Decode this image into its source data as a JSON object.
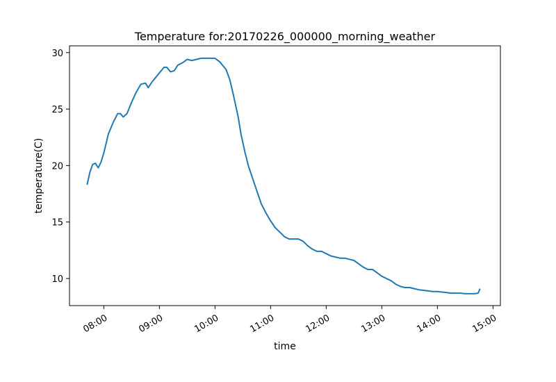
{
  "chart_data": {
    "type": "line",
    "title": "Temperature for:20170226_000000_morning_weather",
    "xlabel": "time",
    "ylabel": "temperature(C)",
    "xlim": [
      "07:23",
      "15:08"
    ],
    "ylim": [
      7.6,
      30.6
    ],
    "x_ticks": [
      "08:00",
      "09:00",
      "10:00",
      "11:00",
      "12:00",
      "13:00",
      "14:00",
      "15:00"
    ],
    "y_ticks": [
      10,
      15,
      20,
      25,
      30
    ],
    "grid": false,
    "series": [
      {
        "color": "#1f77b4",
        "x": [
          "07:42",
          "07:45",
          "07:48",
          "07:51",
          "07:54",
          "07:57",
          "08:00",
          "08:05",
          "08:10",
          "08:15",
          "08:18",
          "08:21",
          "08:25",
          "08:30",
          "08:35",
          "08:40",
          "08:45",
          "08:48",
          "08:52",
          "08:55",
          "09:00",
          "09:05",
          "09:08",
          "09:12",
          "09:16",
          "09:20",
          "09:25",
          "09:30",
          "09:35",
          "09:40",
          "09:45",
          "09:50",
          "09:55",
          "10:00",
          "10:05",
          "10:08",
          "10:12",
          "10:16",
          "10:20",
          "10:25",
          "10:28",
          "10:32",
          "10:36",
          "10:40",
          "10:45",
          "10:50",
          "10:55",
          "11:00",
          "11:05",
          "11:10",
          "11:15",
          "11:20",
          "11:25",
          "11:30",
          "11:35",
          "11:40",
          "11:45",
          "11:50",
          "11:55",
          "12:00",
          "12:05",
          "12:10",
          "12:15",
          "12:20",
          "12:25",
          "12:30",
          "12:35",
          "12:40",
          "12:45",
          "12:50",
          "12:55",
          "13:00",
          "13:05",
          "13:10",
          "13:15",
          "13:20",
          "13:25",
          "13:30",
          "13:35",
          "13:40",
          "13:45",
          "13:50",
          "13:55",
          "14:00",
          "14:05",
          "14:10",
          "14:15",
          "14:20",
          "14:25",
          "14:30",
          "14:35",
          "14:40",
          "14:44",
          "14:46"
        ],
        "values": [
          18.3,
          19.4,
          20.1,
          20.2,
          19.8,
          20.3,
          21.1,
          22.8,
          23.8,
          24.6,
          24.6,
          24.3,
          24.6,
          25.6,
          26.5,
          27.2,
          27.3,
          26.9,
          27.4,
          27.7,
          28.2,
          28.7,
          28.7,
          28.3,
          28.4,
          28.9,
          29.1,
          29.4,
          29.3,
          29.4,
          29.5,
          29.5,
          29.5,
          29.5,
          29.2,
          28.9,
          28.5,
          27.6,
          26.2,
          24.3,
          22.8,
          21.3,
          20.0,
          19.0,
          17.8,
          16.6,
          15.8,
          15.1,
          14.5,
          14.1,
          13.7,
          13.5,
          13.5,
          13.5,
          13.3,
          12.9,
          12.6,
          12.4,
          12.4,
          12.2,
          12.0,
          11.9,
          11.8,
          11.8,
          11.7,
          11.6,
          11.3,
          11.0,
          10.8,
          10.8,
          10.5,
          10.2,
          10.0,
          9.8,
          9.5,
          9.3,
          9.2,
          9.2,
          9.1,
          9.0,
          8.95,
          8.9,
          8.85,
          8.85,
          8.8,
          8.75,
          8.7,
          8.7,
          8.7,
          8.65,
          8.65,
          8.65,
          8.7,
          9.1
        ]
      }
    ]
  }
}
